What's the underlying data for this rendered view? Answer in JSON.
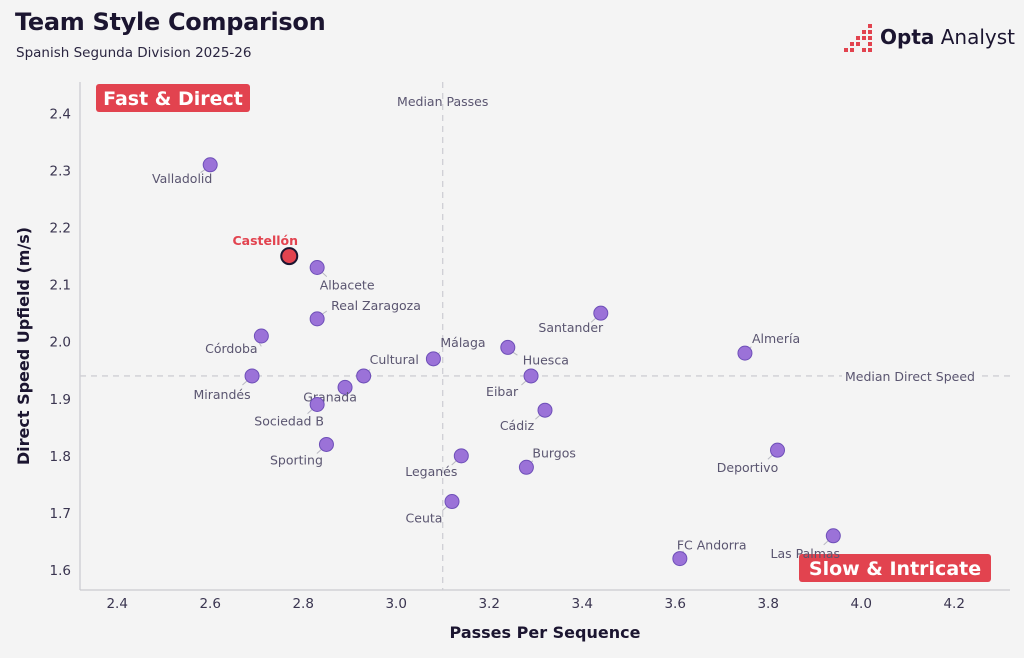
{
  "header": {
    "title": "Team Style Comparison",
    "subtitle": "Spanish Segunda Division 2025-26",
    "brand_bold": "Opta",
    "brand_light": "Analyst"
  },
  "colors": {
    "point": "#9b72d8",
    "point_stroke": "#6e4fb8",
    "highlight": "#e2434f",
    "quadrant_badge": "#e2434f",
    "background": "#f4f4f4",
    "axis_text": "#3a3550",
    "label_text": "#5a5570"
  },
  "chart_data": {
    "type": "scatter",
    "xlabel": "Passes Per Sequence",
    "ylabel": "Direct Speed Upfield (m/s)",
    "xlim": [
      2.32,
      4.32
    ],
    "ylim": [
      1.565,
      2.455
    ],
    "xticks": [
      "2.4",
      "2.6",
      "2.8",
      "3.0",
      "3.2",
      "3.4",
      "3.6",
      "3.8",
      "4.0",
      "4.2"
    ],
    "yticks": [
      "1.6",
      "1.7",
      "1.8",
      "1.9",
      "2.0",
      "2.1",
      "2.2",
      "2.3",
      "2.4"
    ],
    "grid": false,
    "median_x": 3.1,
    "median_y": 1.94,
    "median_x_label": "Median Passes",
    "median_y_label": "Median Direct Speed",
    "quadrants": {
      "top_left": "Fast & Direct",
      "bottom_right": "Slow & Intricate"
    },
    "highlight": "Castellón",
    "points": [
      {
        "name": "Valladolid",
        "x": 2.6,
        "y": 2.31
      },
      {
        "name": "Castellón",
        "x": 2.77,
        "y": 2.15
      },
      {
        "name": "Albacete",
        "x": 2.83,
        "y": 2.13
      },
      {
        "name": "Real Zaragoza",
        "x": 2.83,
        "y": 2.04
      },
      {
        "name": "Córdoba",
        "x": 2.71,
        "y": 2.01
      },
      {
        "name": "Mirandés",
        "x": 2.69,
        "y": 1.94
      },
      {
        "name": "Cultural",
        "x": 2.93,
        "y": 1.94
      },
      {
        "name": "Granada",
        "x": 2.89,
        "y": 1.92
      },
      {
        "name": "Sociedad B",
        "x": 2.83,
        "y": 1.89
      },
      {
        "name": "Sporting",
        "x": 2.85,
        "y": 1.82
      },
      {
        "name": "Málaga",
        "x": 3.08,
        "y": 1.97
      },
      {
        "name": "Leganés",
        "x": 3.14,
        "y": 1.8
      },
      {
        "name": "Ceuta",
        "x": 3.12,
        "y": 1.72
      },
      {
        "name": "Huesca",
        "x": 3.24,
        "y": 1.99
      },
      {
        "name": "Eibar",
        "x": 3.29,
        "y": 1.94
      },
      {
        "name": "Santander",
        "x": 3.44,
        "y": 2.05
      },
      {
        "name": "Cádiz",
        "x": 3.32,
        "y": 1.88
      },
      {
        "name": "Burgos",
        "x": 3.28,
        "y": 1.78
      },
      {
        "name": "Almería",
        "x": 3.75,
        "y": 1.98
      },
      {
        "name": "Deportivo",
        "x": 3.82,
        "y": 1.81
      },
      {
        "name": "FC Andorra",
        "x": 3.61,
        "y": 1.62
      },
      {
        "name": "Las Palmas",
        "x": 3.94,
        "y": 1.66
      }
    ]
  }
}
